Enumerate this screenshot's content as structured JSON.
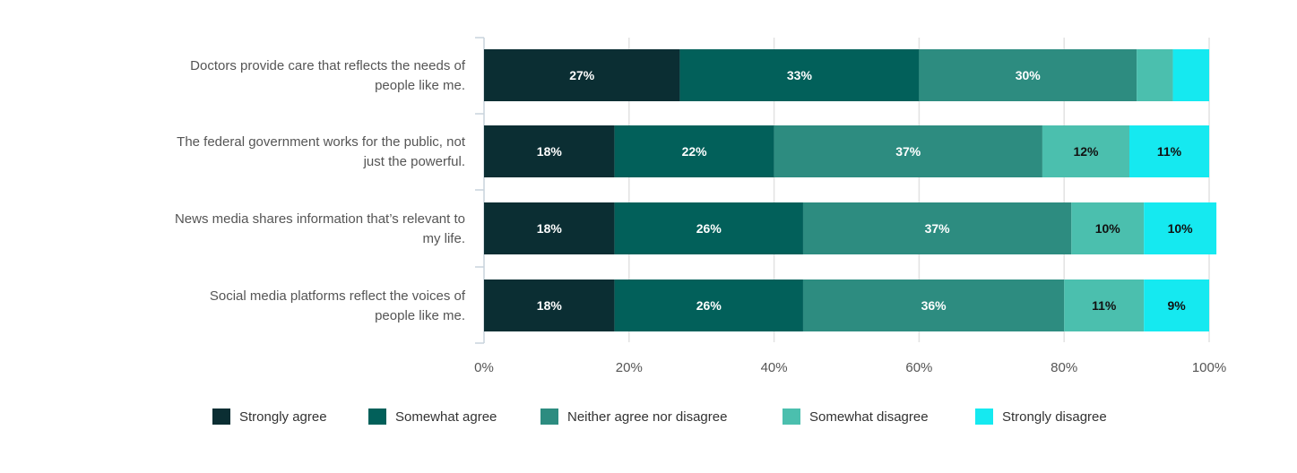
{
  "chart_data": {
    "type": "bar",
    "orientation": "horizontal",
    "stacked": true,
    "categories": [
      [
        "Doctors provide care that reflects the needs of",
        "people like me."
      ],
      [
        "The federal government works for the public, not",
        "just the powerful."
      ],
      [
        "News media shares information that’s relevant to",
        "my life."
      ],
      [
        "Social media platforms reflect the voices of",
        "people like me."
      ]
    ],
    "series": [
      {
        "name": "Strongly agree",
        "color": "#0b2e33",
        "values": [
          27,
          18,
          18,
          18
        ]
      },
      {
        "name": "Somewhat agree",
        "color": "#02605a",
        "values": [
          33,
          22,
          26,
          26
        ]
      },
      {
        "name": "Neither agree nor disagree",
        "color": "#2d8c80",
        "values": [
          30,
          37,
          37,
          36
        ]
      },
      {
        "name": "Somewhat disagree",
        "color": "#4bbfae",
        "values": [
          5,
          12,
          10,
          11
        ]
      },
      {
        "name": "Strongly disagree",
        "color": "#15e9f0",
        "values": [
          5,
          11,
          10,
          9
        ]
      }
    ],
    "hidden_data_labels": [
      [
        0,
        3
      ],
      [
        0,
        4
      ]
    ],
    "xlim": [
      0,
      100
    ],
    "xticks": [
      "0%",
      "20%",
      "40%",
      "60%",
      "80%",
      "100%"
    ],
    "value_suffix": "%",
    "grid": true,
    "legend_position": "bottom"
  }
}
